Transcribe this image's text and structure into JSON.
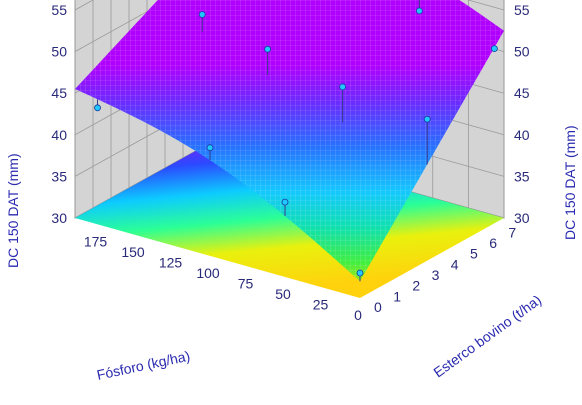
{
  "chart_data": {
    "type": "surface3d",
    "z_label": "DC 150 DAT (mm)",
    "x_label": "Fósforo (kg/ha)",
    "y_label": "Esterco bovino (t/ha)",
    "z_ticks": [
      "30",
      "35",
      "40",
      "45",
      "50",
      "55"
    ],
    "x_ticks": [
      "0",
      "25",
      "50",
      "75",
      "100",
      "125",
      "150",
      "175"
    ],
    "y_ticks": [
      "0",
      "1",
      "2",
      "3",
      "4",
      "5",
      "6",
      "7"
    ],
    "z_range": [
      30,
      55
    ],
    "x_range": [
      0,
      190
    ],
    "y_range": [
      0,
      7.5
    ],
    "colormap": "rainbow",
    "grid": true,
    "surface_corners": [
      {
        "fosforo": 190,
        "esterco": 0,
        "dc": 45.5
      },
      {
        "fosforo": 190,
        "esterco": 7.5,
        "dc": 54.5
      },
      {
        "fosforo": 0,
        "esterco": 7.5,
        "dc": 52.5
      },
      {
        "fosforo": 0,
        "esterco": 0,
        "dc": 32
      }
    ],
    "observed_points": [
      {
        "fosforo": 0,
        "esterco": 0,
        "dc": 33
      },
      {
        "fosforo": 50,
        "esterco": 0,
        "dc": 39
      },
      {
        "fosforo": 100,
        "esterco": 0,
        "dc": 43
      },
      {
        "fosforo": 175,
        "esterco": 0,
        "dc": 44
      },
      {
        "fosforo": 0,
        "esterco": 3.5,
        "dc": 47
      },
      {
        "fosforo": 50,
        "esterco": 3,
        "dc": 49
      },
      {
        "fosforo": 100,
        "esterco": 3,
        "dc": 51
      },
      {
        "fosforo": 150,
        "esterco": 3.5,
        "dc": 52
      },
      {
        "fosforo": 0,
        "esterco": 7,
        "dc": 51
      },
      {
        "fosforo": 50,
        "esterco": 7,
        "dc": 53
      },
      {
        "fosforo": 100,
        "esterco": 7,
        "dc": 55
      },
      {
        "fosforo": 175,
        "esterco": 7,
        "dc": 55
      }
    ]
  }
}
